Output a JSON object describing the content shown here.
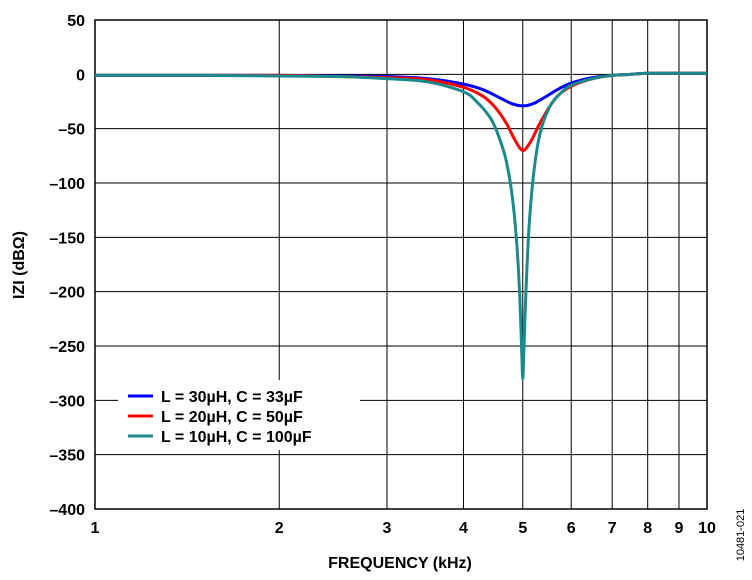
{
  "figure_id": "10481-021",
  "chart_data": {
    "type": "line",
    "title": "",
    "xlabel": "FREQUENCY (kHz)",
    "ylabel": "IZI (dBΩ)",
    "x_scale": "log",
    "xlim": [
      1,
      10
    ],
    "ylim": [
      -400,
      50
    ],
    "x_ticks": [
      1,
      2,
      3,
      4,
      5,
      6,
      7,
      8,
      9,
      10
    ],
    "x_tick_labels": [
      "1",
      "2",
      "3",
      "4",
      "5",
      "6",
      "7",
      "8",
      "9",
      "10"
    ],
    "y_ticks": [
      50,
      0,
      -50,
      -100,
      -150,
      -200,
      -250,
      -300,
      -350,
      -400
    ],
    "y_tick_labels": [
      "50",
      "0",
      "–50",
      "–100",
      "–150",
      "–200",
      "–250",
      "–300",
      "–350",
      "–400"
    ],
    "grid": true,
    "legend_position": "lower-left",
    "series": [
      {
        "name": "L = 30µH, C = 33µF",
        "color": "#0000ff",
        "x": [
          1,
          1.5,
          2,
          2.5,
          3,
          3.5,
          4,
          4.3,
          4.6,
          4.8,
          5,
          5.2,
          5.4,
          5.7,
          6,
          6.5,
          7,
          7.5,
          8,
          9,
          10
        ],
        "y": [
          -1,
          -1,
          -1,
          -1.5,
          -2,
          -4,
          -9,
          -14,
          -22,
          -27,
          -29,
          -27,
          -22,
          -14,
          -8,
          -3,
          -1,
          0,
          1,
          1,
          1
        ]
      },
      {
        "name": "L = 20µH, C = 50µF",
        "color": "#ff0000",
        "x": [
          1,
          1.5,
          2,
          2.5,
          3,
          3.5,
          4,
          4.3,
          4.5,
          4.7,
          4.85,
          5,
          5.15,
          5.3,
          5.5,
          5.7,
          6,
          6.5,
          7,
          7.5,
          8,
          9,
          10
        ],
        "y": [
          -1,
          -1,
          -1,
          -2,
          -3,
          -5,
          -12,
          -20,
          -30,
          -45,
          -60,
          -70,
          -62,
          -48,
          -32,
          -20,
          -11,
          -4,
          -1,
          0,
          1,
          1,
          1
        ]
      },
      {
        "name": "L = 10µH, C = 100µF",
        "color": "#1a8a8a",
        "x": [
          1,
          1.5,
          2,
          2.5,
          3,
          3.5,
          4,
          4.2,
          4.4,
          4.5,
          4.6,
          4.7,
          4.8,
          4.88,
          4.94,
          4.98,
          5.0,
          5.02,
          5.06,
          5.12,
          5.2,
          5.3,
          5.4,
          5.5,
          5.6,
          5.8,
          6,
          6.5,
          7,
          7.5,
          8,
          9,
          10
        ],
        "y": [
          -1,
          -1,
          -1.5,
          -2,
          -4,
          -7,
          -16,
          -25,
          -38,
          -48,
          -62,
          -80,
          -110,
          -150,
          -200,
          -255,
          -280,
          -255,
          -200,
          -140,
          -95,
          -62,
          -44,
          -33,
          -25,
          -16,
          -10,
          -4,
          -1,
          0,
          1,
          1,
          1
        ]
      }
    ]
  }
}
